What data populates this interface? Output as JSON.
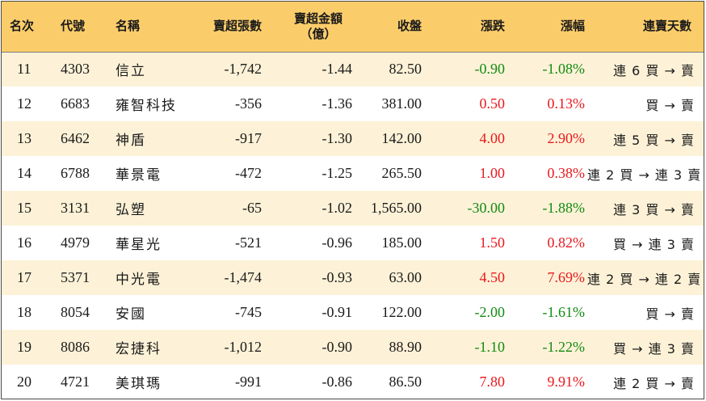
{
  "colors": {
    "header_bg": "#fbcd6a",
    "row_odd_bg": "#fdf2d7",
    "row_even_bg": "#ffffff",
    "up": "#e8191e",
    "down": "#138a13"
  },
  "headers": {
    "rank": "名次",
    "code": "代號",
    "name": "名稱",
    "net_sell_shares": "賣超張數",
    "net_sell_amount_line1": "賣超金額",
    "net_sell_amount_line2": "（億）",
    "close": "收盤",
    "change": "漲跌",
    "change_pct": "漲幅",
    "streak": "連賣天數"
  },
  "rows": [
    {
      "rank": "11",
      "code": "4303",
      "name": "信立",
      "shares": "-1,742",
      "amount": "-1.44",
      "close": "82.50",
      "change": "-0.90",
      "pct": "-1.08%",
      "dir": "down",
      "streak": "連 6 買 → 賣"
    },
    {
      "rank": "12",
      "code": "6683",
      "name": "雍智科技",
      "shares": "-356",
      "amount": "-1.36",
      "close": "381.00",
      "change": "0.50",
      "pct": "0.13%",
      "dir": "up",
      "streak": "買 → 賣"
    },
    {
      "rank": "13",
      "code": "6462",
      "name": "神盾",
      "shares": "-917",
      "amount": "-1.30",
      "close": "142.00",
      "change": "4.00",
      "pct": "2.90%",
      "dir": "up",
      "streak": "連 5 買 → 賣"
    },
    {
      "rank": "14",
      "code": "6788",
      "name": "華景電",
      "shares": "-472",
      "amount": "-1.25",
      "close": "265.50",
      "change": "1.00",
      "pct": "0.38%",
      "dir": "up",
      "streak": "連 2 買 → 連 3 賣"
    },
    {
      "rank": "15",
      "code": "3131",
      "name": "弘塑",
      "shares": "-65",
      "amount": "-1.02",
      "close": "1,565.00",
      "change": "-30.00",
      "pct": "-1.88%",
      "dir": "down",
      "streak": "連 3 買 → 賣"
    },
    {
      "rank": "16",
      "code": "4979",
      "name": "華星光",
      "shares": "-521",
      "amount": "-0.96",
      "close": "185.00",
      "change": "1.50",
      "pct": "0.82%",
      "dir": "up",
      "streak": "買 → 連 3 賣"
    },
    {
      "rank": "17",
      "code": "5371",
      "name": "中光電",
      "shares": "-1,474",
      "amount": "-0.93",
      "close": "63.00",
      "change": "4.50",
      "pct": "7.69%",
      "dir": "up",
      "streak": "連 2 買 → 連 2 賣"
    },
    {
      "rank": "18",
      "code": "8054",
      "name": "安國",
      "shares": "-745",
      "amount": "-0.91",
      "close": "122.00",
      "change": "-2.00",
      "pct": "-1.61%",
      "dir": "down",
      "streak": "買 → 賣"
    },
    {
      "rank": "19",
      "code": "8086",
      "name": "宏捷科",
      "shares": "-1,012",
      "amount": "-0.90",
      "close": "88.90",
      "change": "-1.10",
      "pct": "-1.22%",
      "dir": "down",
      "streak": "買 → 連 3 賣"
    },
    {
      "rank": "20",
      "code": "4721",
      "name": "美琪瑪",
      "shares": "-991",
      "amount": "-0.86",
      "close": "86.50",
      "change": "7.80",
      "pct": "9.91%",
      "dir": "up",
      "streak": "連 2 買 → 賣"
    }
  ]
}
